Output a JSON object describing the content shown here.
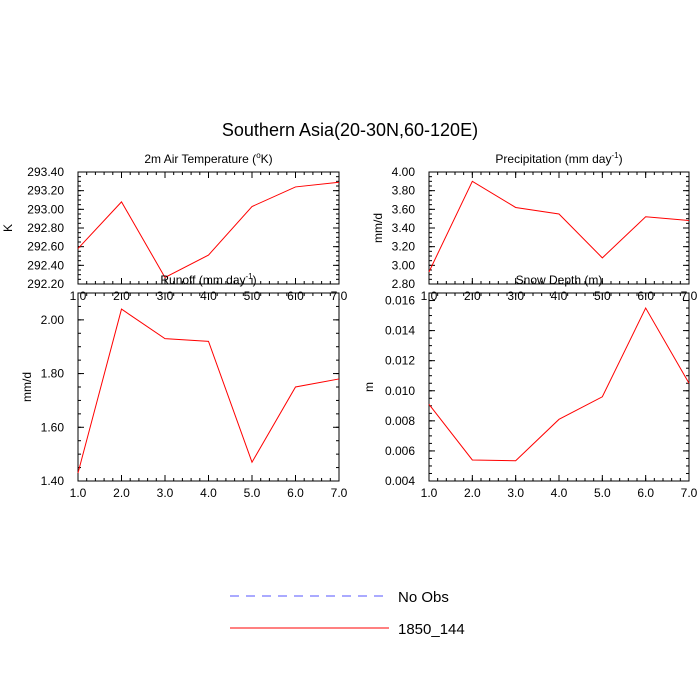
{
  "figure": {
    "title": "Southern Asia(20-30N,60-120E)"
  },
  "legend": {
    "items": [
      {
        "label": "No Obs",
        "color": "#5555ff",
        "style": "dashed"
      },
      {
        "label": "1850_144",
        "color": "#ff0000",
        "style": "solid"
      }
    ]
  },
  "chart_data": [
    {
      "type": "line",
      "title": "2m Air Temperature (",
      "title_sup": "o",
      "title_after": "K)",
      "ylabel": "K",
      "x": [
        1,
        2,
        3,
        4,
        5,
        6,
        7
      ],
      "xticks": [
        "1.0",
        "2.0",
        "3.0",
        "4.0",
        "5.0",
        "6.0",
        "7.0"
      ],
      "xlim": [
        1,
        7
      ],
      "ylim": [
        292.2,
        293.4
      ],
      "yticks": [
        "292.20",
        "292.40",
        "292.60",
        "292.80",
        "293.00",
        "293.20",
        "293.40"
      ],
      "ytick_values": [
        292.2,
        292.4,
        292.6,
        292.8,
        293.0,
        293.2,
        293.4
      ],
      "yminor_step": 0.05,
      "series": [
        {
          "color": "#ff0000",
          "values": [
            292.58,
            293.08,
            292.27,
            292.51,
            293.03,
            293.24,
            293.29
          ]
        }
      ]
    },
    {
      "type": "line",
      "title": "Precipitation (mm day",
      "title_sup": "-1",
      "title_after": ")",
      "ylabel": "mm/d",
      "x": [
        1,
        2,
        3,
        4,
        5,
        6,
        7
      ],
      "xticks": [
        "1.0",
        "2.0",
        "3.0",
        "4.0",
        "5.0",
        "6.0",
        "7.0"
      ],
      "xlim": [
        1,
        7
      ],
      "ylim": [
        2.8,
        4.0
      ],
      "yticks": [
        "2.80",
        "3.00",
        "3.20",
        "3.40",
        "3.60",
        "3.80",
        "4.00"
      ],
      "ytick_values": [
        2.8,
        3.0,
        3.2,
        3.4,
        3.6,
        3.8,
        4.0
      ],
      "yminor_step": 0.05,
      "series": [
        {
          "color": "#ff0000",
          "values": [
            2.93,
            3.9,
            3.62,
            3.55,
            3.08,
            3.52,
            3.48
          ]
        }
      ]
    },
    {
      "type": "line",
      "title": "Runoff (mm day",
      "title_sup": "-1",
      "title_after": ")",
      "ylabel": "mm/d",
      "x": [
        1,
        2,
        3,
        4,
        5,
        6,
        7
      ],
      "xticks": [
        "1.0",
        "2.0",
        "3.0",
        "4.0",
        "5.0",
        "6.0",
        "7.0"
      ],
      "xlim": [
        1,
        7
      ],
      "ylim": [
        1.4,
        2.1
      ],
      "yticks": [
        "1.40",
        "1.60",
        "1.80",
        "2.00"
      ],
      "ytick_values": [
        1.4,
        1.6,
        1.8,
        2.0
      ],
      "yminor_step": 0.05,
      "series": [
        {
          "color": "#ff0000",
          "values": [
            1.43,
            2.04,
            1.93,
            1.92,
            1.47,
            1.75,
            1.78
          ]
        }
      ]
    },
    {
      "type": "line",
      "title": "Snow Depth (m)",
      "title_sup": "",
      "title_after": "",
      "ylabel": "m",
      "x": [
        1,
        2,
        3,
        4,
        5,
        6,
        7
      ],
      "xticks": [
        "1.0",
        "2.0",
        "3.0",
        "4.0",
        "5.0",
        "6.0",
        "7.0"
      ],
      "xlim": [
        1,
        7
      ],
      "ylim": [
        0.004,
        0.0165
      ],
      "yticks": [
        "0.004",
        "0.006",
        "0.008",
        "0.010",
        "0.012",
        "0.014",
        "0.016"
      ],
      "ytick_values": [
        0.004,
        0.006,
        0.008,
        0.01,
        0.012,
        0.014,
        0.016
      ],
      "yminor_step": 0.0005,
      "series": [
        {
          "color": "#ff0000",
          "values": [
            0.0091,
            0.0054,
            0.00535,
            0.0081,
            0.0096,
            0.0155,
            0.0105
          ]
        }
      ]
    }
  ]
}
